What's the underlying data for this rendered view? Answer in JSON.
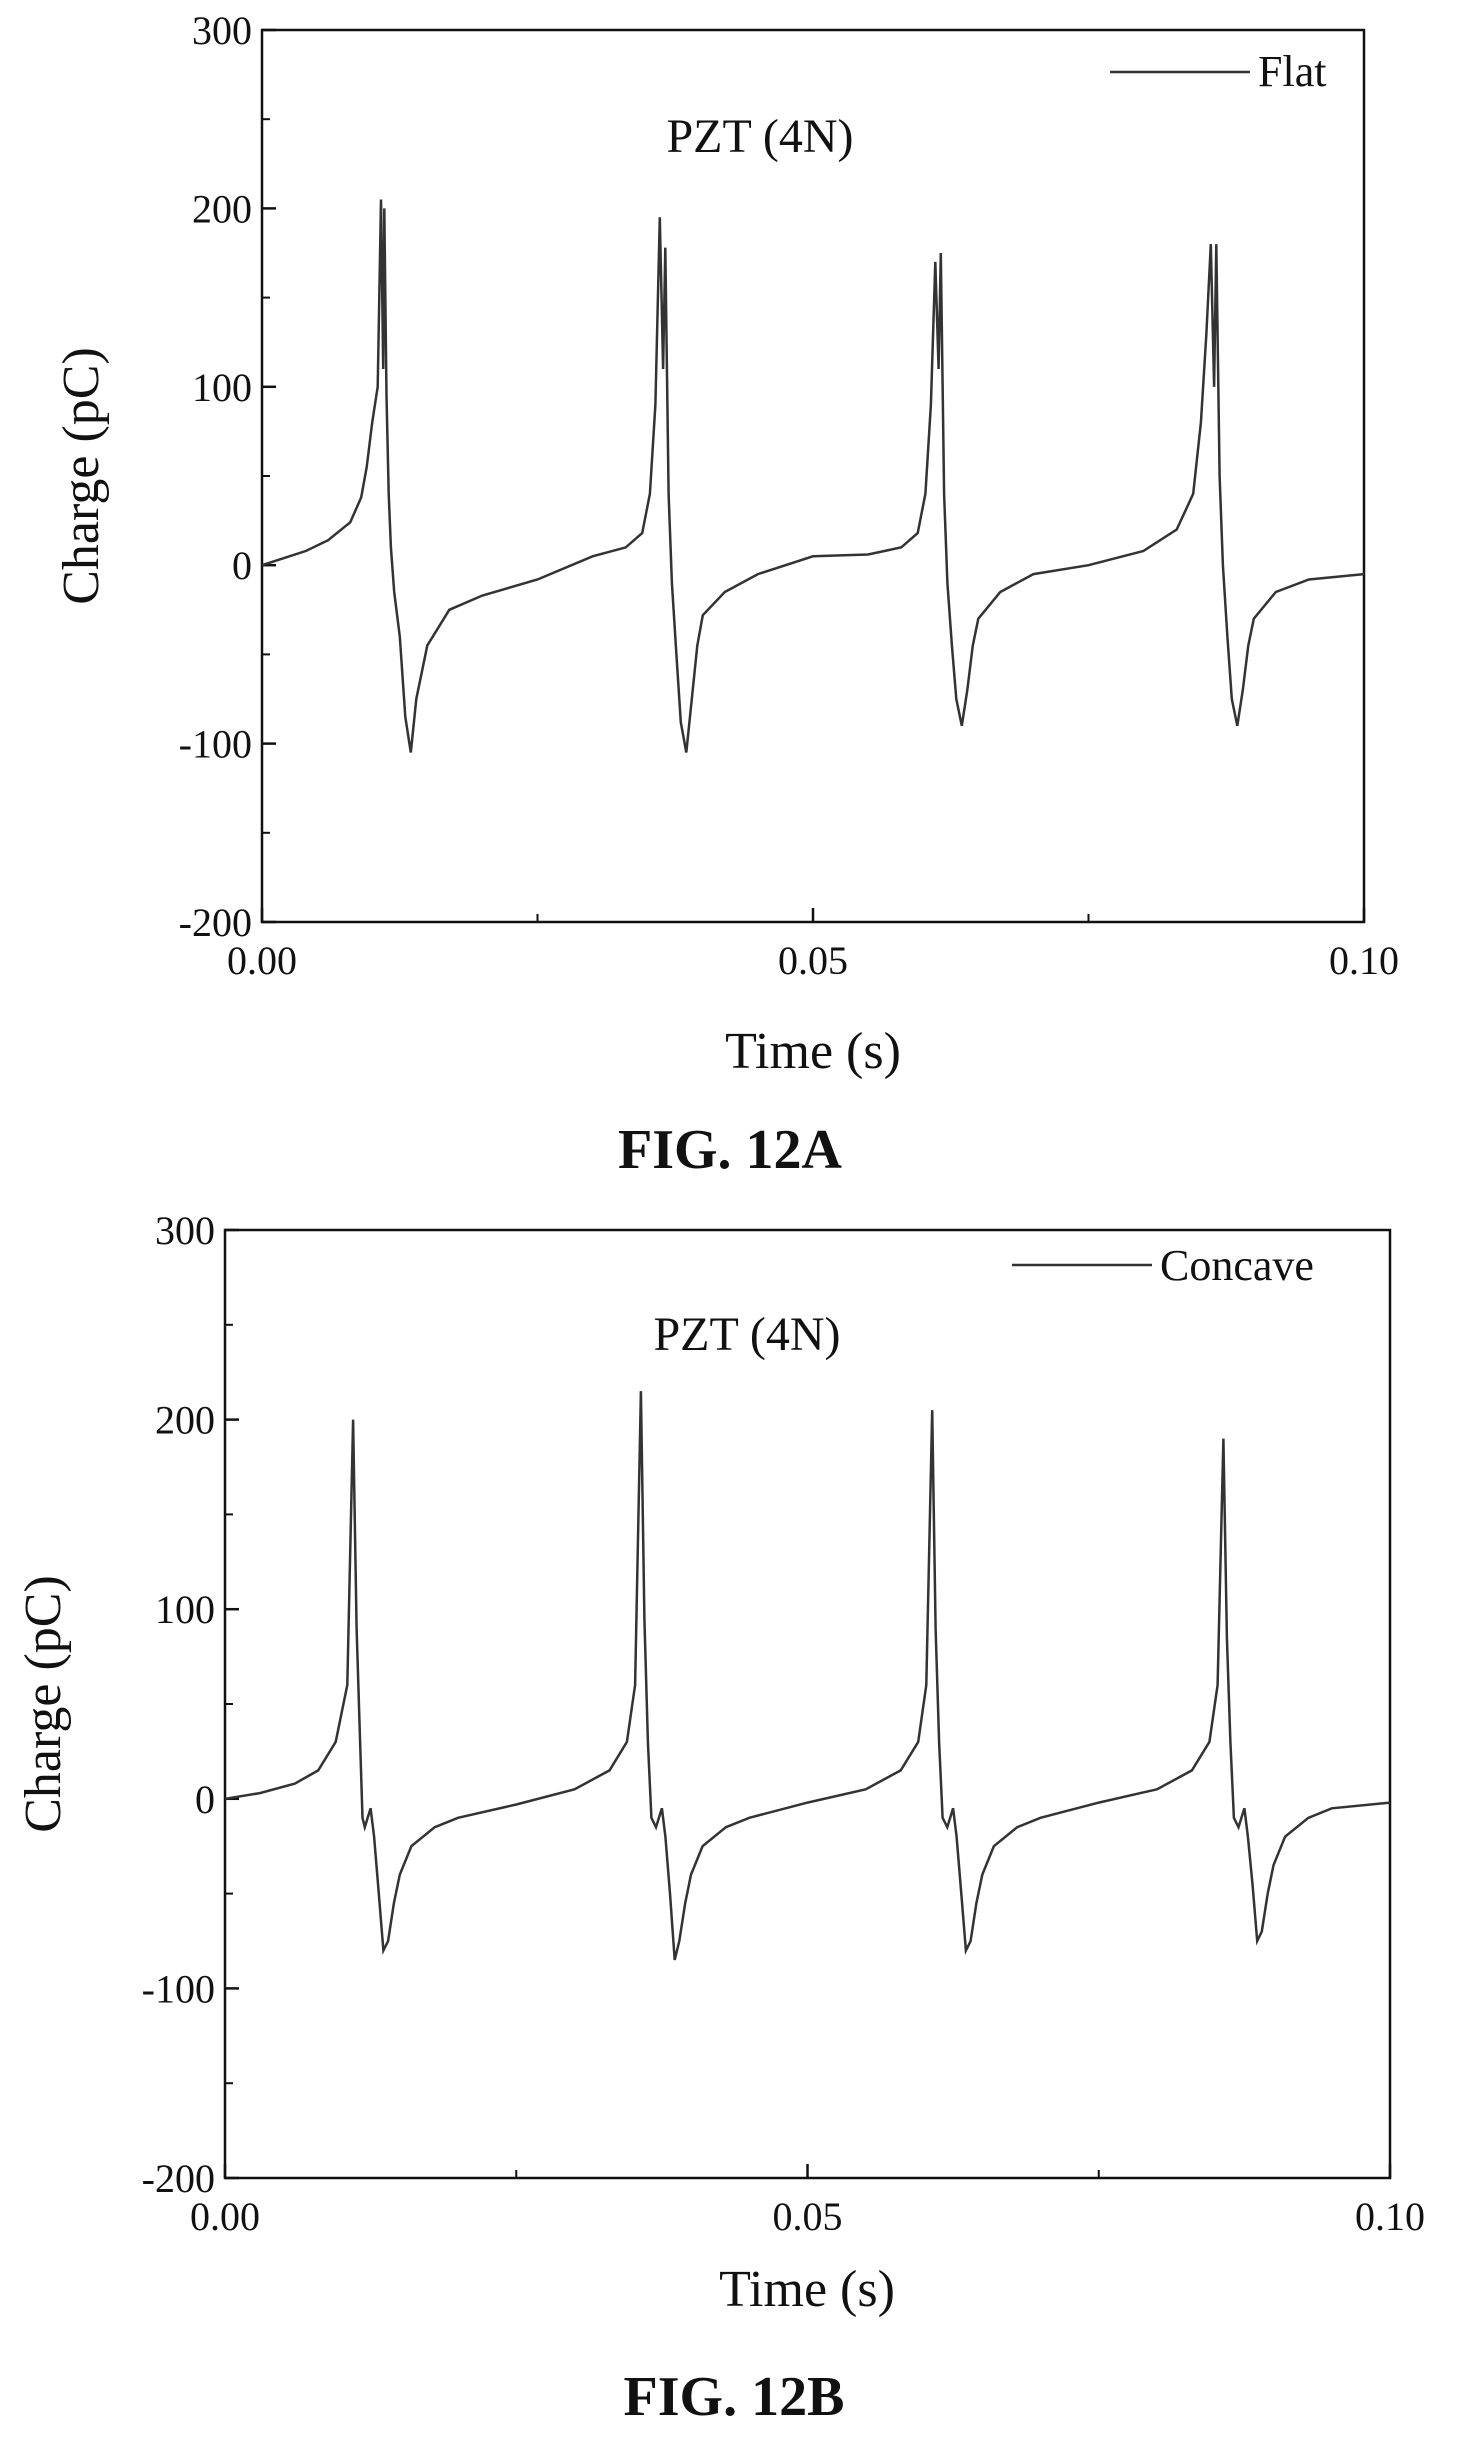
{
  "figures": [
    {
      "caption": "FIG. 12A",
      "chart_data": {
        "type": "line",
        "title": "PZT (4N)",
        "xlabel": "Time (s)",
        "ylabel": "Charge (pC)",
        "xlim": [
          0.0,
          0.1
        ],
        "ylim": [
          -200,
          300
        ],
        "x_ticks": [
          "0.00",
          "0.05",
          "0.10"
        ],
        "y_ticks": [
          "-200",
          "-100",
          "0",
          "100",
          "200",
          "300"
        ],
        "legend_position": "top-right",
        "grid": false,
        "series": [
          {
            "name": "Flat",
            "color": "#333333",
            "x": [
              0.0,
              0.002,
              0.004,
              0.006,
              0.008,
              0.009,
              0.0095,
              0.01,
              0.0105,
              0.0108,
              0.011,
              0.0111,
              0.0113,
              0.0115,
              0.0117,
              0.012,
              0.0125,
              0.013,
              0.0135,
              0.014,
              0.015,
              0.017,
              0.02,
              0.025,
              0.03,
              0.033,
              0.0345,
              0.0352,
              0.0357,
              0.0361,
              0.0364,
              0.0366,
              0.0369,
              0.0372,
              0.0376,
              0.038,
              0.0385,
              0.039,
              0.0395,
              0.04,
              0.042,
              0.045,
              0.05,
              0.055,
              0.058,
              0.0595,
              0.0602,
              0.0607,
              0.0611,
              0.0614,
              0.0616,
              0.0619,
              0.0622,
              0.0626,
              0.063,
              0.0635,
              0.064,
              0.0645,
              0.065,
              0.067,
              0.07,
              0.075,
              0.08,
              0.083,
              0.0845,
              0.0852,
              0.0857,
              0.0861,
              0.0864,
              0.0866,
              0.0869,
              0.0872,
              0.0876,
              0.088,
              0.0885,
              0.089,
              0.0895,
              0.09,
              0.092,
              0.095,
              0.1
            ],
            "y": [
              0,
              4,
              8,
              14,
              24,
              38,
              55,
              80,
              100,
              205,
              110,
              200,
              95,
              40,
              10,
              -15,
              -40,
              -85,
              -105,
              -75,
              -45,
              -25,
              -17,
              -8,
              5,
              10,
              18,
              40,
              90,
              195,
              110,
              178,
              40,
              -10,
              -50,
              -88,
              -105,
              -75,
              -45,
              -28,
              -15,
              -5,
              5,
              6,
              10,
              18,
              40,
              90,
              170,
              110,
              175,
              40,
              -10,
              -45,
              -75,
              -90,
              -70,
              -45,
              -30,
              -15,
              -5,
              0,
              8,
              20,
              40,
              80,
              130,
              180,
              100,
              180,
              50,
              0,
              -40,
              -75,
              -90,
              -70,
              -45,
              -30,
              -15,
              -8,
              -5
            ]
          }
        ]
      }
    },
    {
      "caption": "FIG. 12B",
      "chart_data": {
        "type": "line",
        "title": "PZT (4N)",
        "xlabel": "Time (s)",
        "ylabel": "Charge (pC)",
        "xlim": [
          0.0,
          0.1
        ],
        "ylim": [
          -200,
          300
        ],
        "x_ticks": [
          "0.00",
          "0.05",
          "0.10"
        ],
        "y_ticks": [
          "-200",
          "-100",
          "0",
          "100",
          "200",
          "300"
        ],
        "legend_position": "top-right",
        "grid": false,
        "series": [
          {
            "name": "Concave",
            "color": "#333333",
            "x": [
              0.0,
              0.003,
              0.006,
              0.008,
              0.0095,
              0.0105,
              0.011,
              0.0113,
              0.0116,
              0.0118,
              0.012,
              0.0125,
              0.0128,
              0.0132,
              0.0136,
              0.014,
              0.0145,
              0.015,
              0.016,
              0.018,
              0.02,
              0.025,
              0.03,
              0.033,
              0.0345,
              0.0352,
              0.0357,
              0.036,
              0.0363,
              0.0366,
              0.037,
              0.0375,
              0.0378,
              0.0382,
              0.0386,
              0.039,
              0.0395,
              0.04,
              0.041,
              0.043,
              0.045,
              0.05,
              0.055,
              0.058,
              0.0595,
              0.0602,
              0.0607,
              0.061,
              0.0613,
              0.0616,
              0.062,
              0.0625,
              0.0628,
              0.0632,
              0.0636,
              0.064,
              0.0645,
              0.065,
              0.066,
              0.068,
              0.07,
              0.075,
              0.08,
              0.083,
              0.0845,
              0.0852,
              0.0857,
              0.086,
              0.0863,
              0.0866,
              0.087,
              0.0875,
              0.0878,
              0.0882,
              0.0886,
              0.089,
              0.0895,
              0.09,
              0.091,
              0.093,
              0.095,
              0.1
            ],
            "y": [
              0,
              3,
              8,
              15,
              30,
              60,
              200,
              90,
              30,
              -10,
              -15,
              -5,
              -20,
              -50,
              -80,
              -75,
              -55,
              -40,
              -25,
              -15,
              -10,
              -3,
              5,
              15,
              30,
              60,
              215,
              95,
              30,
              -10,
              -15,
              -5,
              -20,
              -50,
              -85,
              -75,
              -55,
              -40,
              -25,
              -15,
              -10,
              -2,
              5,
              15,
              30,
              60,
              205,
              90,
              30,
              -10,
              -15,
              -5,
              -20,
              -50,
              -80,
              -75,
              -55,
              -40,
              -25,
              -15,
              -10,
              -2,
              5,
              15,
              30,
              60,
              190,
              85,
              30,
              -10,
              -15,
              -5,
              -20,
              -45,
              -75,
              -70,
              -50,
              -35,
              -20,
              -10,
              -5,
              -2
            ]
          }
        ]
      }
    }
  ]
}
